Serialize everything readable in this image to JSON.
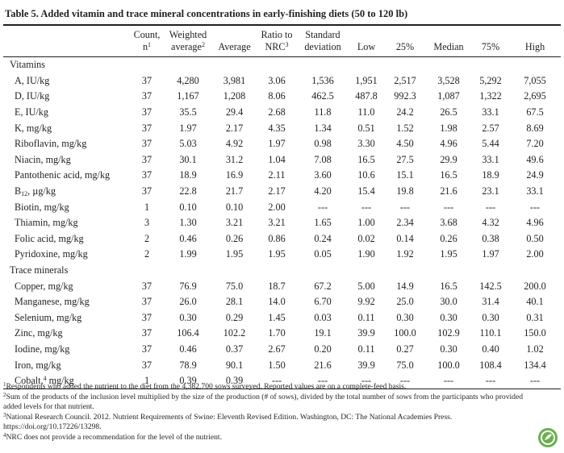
{
  "title": "Table 5. Added vitamin and trace mineral concentrations in early-finishing diets (50 to 120 lb)",
  "table": {
    "columns": [
      {
        "line1": "Count,",
        "line2": "n",
        "sup": "1"
      },
      {
        "line1": "Weighted",
        "line2": "average",
        "sup": "2"
      },
      {
        "line1": "Average"
      },
      {
        "line1": "Ratio to",
        "line2": "NRC",
        "sup": "3"
      },
      {
        "line1": "Standard",
        "line2": "deviation"
      },
      {
        "line1": "Low"
      },
      {
        "line1": "25%"
      },
      {
        "line1": "Median"
      },
      {
        "line1": "75%"
      },
      {
        "line1": "High"
      }
    ],
    "sections": [
      {
        "title": "Vitamins",
        "rows": [
          {
            "label": {
              "text": "A, IU/kg"
            },
            "cells": [
              "37",
              "4,280",
              "3,981",
              "3.06",
              "1,536",
              "1,951",
              "2,517",
              "3,528",
              "5,292",
              "7,055"
            ]
          },
          {
            "label": {
              "text": "D, IU/kg"
            },
            "cells": [
              "37",
              "1,167",
              "1,208",
              "8.06",
              "462.5",
              "487.8",
              "992.3",
              "1,087",
              "1,322",
              "2,695"
            ]
          },
          {
            "label": {
              "text": "E, IU/kg"
            },
            "cells": [
              "37",
              "35.5",
              "29.4",
              "2.68",
              "11.8",
              "11.0",
              "24.2",
              "26.5",
              "33.1",
              "67.5"
            ]
          },
          {
            "label": {
              "text": "K, mg/kg"
            },
            "cells": [
              "37",
              "1.97",
              "2.17",
              "4.35",
              "1.34",
              "0.51",
              "1.52",
              "1.98",
              "2.57",
              "8.69"
            ]
          },
          {
            "label": {
              "text": "Riboflavin, mg/kg"
            },
            "cells": [
              "37",
              "5.03",
              "4.92",
              "1.97",
              "0.98",
              "3.30",
              "4.50",
              "4.96",
              "5.44",
              "7.20"
            ]
          },
          {
            "label": {
              "text": "Niacin, mg/kg"
            },
            "cells": [
              "37",
              "30.1",
              "31.2",
              "1.04",
              "7.08",
              "16.5",
              "27.5",
              "29.9",
              "33.1",
              "49.6"
            ]
          },
          {
            "label": {
              "text": "Pantothenic acid, mg/kg"
            },
            "cells": [
              "37",
              "18.9",
              "16.9",
              "2.11",
              "3.60",
              "10.6",
              "15.1",
              "16.5",
              "18.9",
              "24.9"
            ]
          },
          {
            "label": {
              "text": "B",
              "sub": "12",
              "after": ", µg/kg"
            },
            "cells": [
              "37",
              "22.8",
              "21.7",
              "2.17",
              "4.20",
              "15.4",
              "19.8",
              "21.6",
              "23.1",
              "33.1"
            ]
          },
          {
            "label": {
              "text": "Biotin, mg/kg"
            },
            "cells": [
              "1",
              "0.10",
              "0.10",
              "2.00",
              "---",
              "---",
              "---",
              "---",
              "---",
              "---"
            ]
          },
          {
            "label": {
              "text": "Thiamin, mg/kg"
            },
            "cells": [
              "3",
              "1.30",
              "3.21",
              "3.21",
              "1.65",
              "1.00",
              "2.34",
              "3.68",
              "4.32",
              "4.96"
            ]
          },
          {
            "label": {
              "text": "Folic acid, mg/kg"
            },
            "cells": [
              "2",
              "0.46",
              "0.26",
              "0.86",
              "0.24",
              "0.02",
              "0.14",
              "0.26",
              "0.38",
              "0.50"
            ]
          },
          {
            "label": {
              "text": "Pyridoxine, mg/kg"
            },
            "cells": [
              "2",
              "1.99",
              "1.95",
              "1.95",
              "0.05",
              "1.90",
              "1.92",
              "1.95",
              "1.97",
              "2.00"
            ]
          }
        ]
      },
      {
        "title": "Trace minerals",
        "rows": [
          {
            "label": {
              "text": "Copper, mg/kg"
            },
            "cells": [
              "37",
              "76.9",
              "75.0",
              "18.7",
              "67.2",
              "5.00",
              "14.9",
              "16.5",
              "142.5",
              "200.0"
            ]
          },
          {
            "label": {
              "text": "Manganese, mg/kg"
            },
            "cells": [
              "37",
              "26.0",
              "28.1",
              "14.0",
              "6.70",
              "9.92",
              "25.0",
              "30.0",
              "31.4",
              "40.1"
            ]
          },
          {
            "label": {
              "text": "Selenium, mg/kg"
            },
            "cells": [
              "37",
              "0.30",
              "0.29",
              "1.45",
              "0.03",
              "0.11",
              "0.30",
              "0.30",
              "0.30",
              "0.31"
            ]
          },
          {
            "label": {
              "text": "Zinc, mg/kg"
            },
            "cells": [
              "37",
              "106.4",
              "102.2",
              "1.70",
              "19.1",
              "39.9",
              "100.0",
              "102.9",
              "110.1",
              "150.0"
            ]
          },
          {
            "label": {
              "text": "Iodine, mg/kg"
            },
            "cells": [
              "37",
              "0.46",
              "0.37",
              "2.67",
              "0.20",
              "0.11",
              "0.27",
              "0.30",
              "0.40",
              "1.02"
            ]
          },
          {
            "label": {
              "text": "Iron, mg/kg"
            },
            "cells": [
              "37",
              "78.9",
              "90.1",
              "1.50",
              "21.6",
              "39.9",
              "75.0",
              "100.0",
              "108.4",
              "134.4"
            ]
          },
          {
            "label": {
              "text": "Cobalt,",
              "sup": "4",
              "after": " mg/kg"
            },
            "cells": [
              "1",
              "0.39",
              "0.39",
              "---",
              "---",
              "---",
              "---",
              "---",
              "---",
              "---"
            ]
          }
        ]
      }
    ]
  },
  "footnotes": [
    {
      "mark": "1",
      "text": "Respondents who added the nutrient to the diet from the 4,382,700 sows surveyed. Reported values are on a complete-feed basis."
    },
    {
      "mark": "2",
      "text": "Sum of the products of the inclusion level multiplied by the size of the production (# of sows), divided by the total number of sows from the participants who provided added levels for that nutrient."
    },
    {
      "mark": "3",
      "text": "National Research Council. 2012. Nutrient Requirements of Swine: Eleventh Revised Edition. Washington, DC: The National Academies Press. https://doi.org/10.17226/13298."
    },
    {
      "mark": "4",
      "text": "NRC does not provide a recommendation for the level of the nutrient."
    }
  ]
}
